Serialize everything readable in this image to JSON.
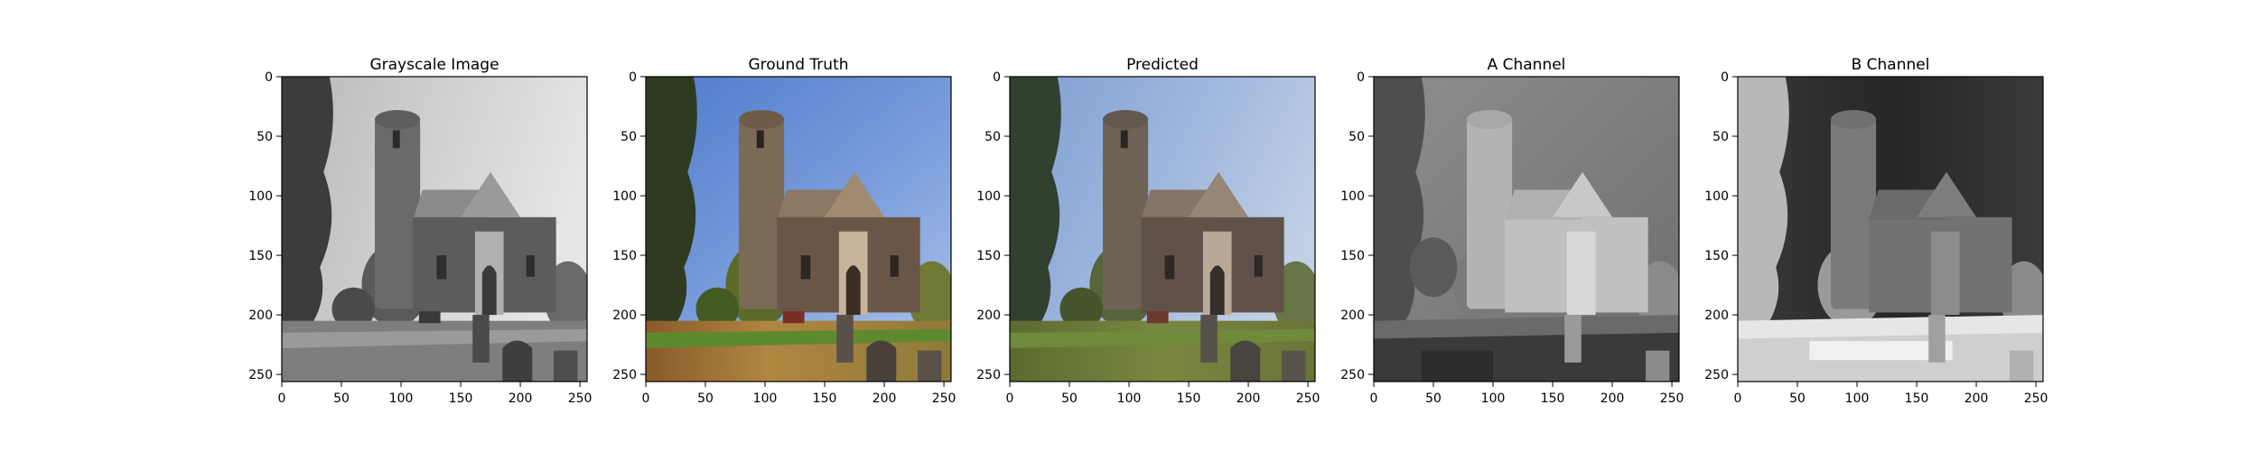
{
  "panels": [
    {
      "title": "Grayscale Image",
      "content": "grayscale photo of a round-tower flint church with churchyard, gravestones, trees and bench"
    },
    {
      "title": "Ground Truth",
      "content": "color photo of the round-tower church under blue sky, warm sunlit grass and trees"
    },
    {
      "title": "Predicted",
      "content": "colorized prediction of the church photo with greener grass and softer blue sky"
    },
    {
      "title": "A Channel",
      "content": "grayscale visualization of the a* chroma channel"
    },
    {
      "title": "B Channel",
      "content": "grayscale visualization of the b* chroma channel"
    }
  ],
  "axes": {
    "x_ticks": [
      "0",
      "50",
      "100",
      "150",
      "200",
      "250"
    ],
    "y_ticks": [
      "0",
      "50",
      "100",
      "150",
      "200",
      "250"
    ],
    "range": [
      0,
      256
    ]
  },
  "colors": {
    "sky_blue": "#6f93d6",
    "grass_warm": "#9a7a3e",
    "grass_green": "#6e7d3c",
    "stone": "#7a6a5a",
    "tree_dark": "#2e3a22"
  }
}
